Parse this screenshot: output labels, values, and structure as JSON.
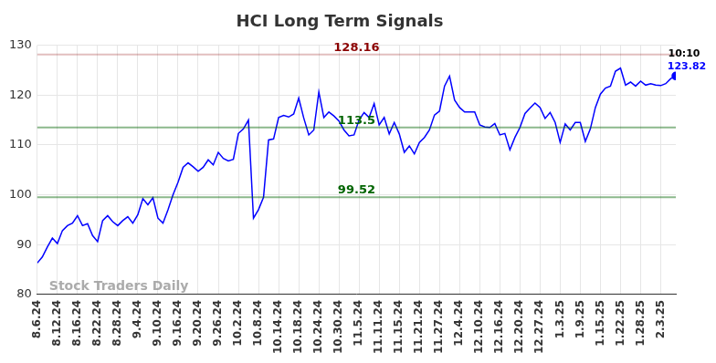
{
  "chart_data": {
    "type": "line",
    "title": "HCI Long Term Signals",
    "categories": [
      "8.6.24",
      null,
      null,
      null,
      "8.12.24",
      null,
      null,
      null,
      "8.16.24",
      null,
      null,
      null,
      "8.22.24",
      null,
      null,
      null,
      "8.28.24",
      null,
      null,
      null,
      "9.4.24",
      null,
      null,
      null,
      "9.10.24",
      null,
      null,
      null,
      "9.16.24",
      null,
      null,
      null,
      "9.20.24",
      null,
      null,
      null,
      "9.26.24",
      null,
      null,
      null,
      "10.2.24",
      null,
      null,
      null,
      "10.8.24",
      null,
      null,
      null,
      "10.14.24",
      null,
      null,
      null,
      "10.18.24",
      null,
      null,
      null,
      "10.24.24",
      null,
      null,
      null,
      "10.30.24",
      null,
      null,
      null,
      "11.5.24",
      null,
      null,
      null,
      "11.11.24",
      null,
      null,
      null,
      "11.15.24",
      null,
      null,
      null,
      "11.21.24",
      null,
      null,
      null,
      "11.27.24",
      null,
      null,
      null,
      "12.4.24",
      null,
      null,
      null,
      "12.10.24",
      null,
      null,
      null,
      "12.16.24",
      null,
      null,
      null,
      "12.20.24",
      null,
      null,
      null,
      "12.27.24",
      null,
      null,
      null,
      "1.3.25",
      null,
      null,
      null,
      "1.9.25",
      null,
      null,
      null,
      "1.15.25",
      null,
      null,
      null,
      "1.22.25",
      null,
      null,
      null,
      "1.28.25",
      null,
      null,
      null,
      "2.3.25",
      null,
      null,
      null
    ],
    "values": [
      86.3,
      87.5,
      89.5,
      91.3,
      90.2,
      92.8,
      93.8,
      94.3,
      95.8,
      93.8,
      94.2,
      91.8,
      90.6,
      94.8,
      95.8,
      94.6,
      93.8,
      94.8,
      95.6,
      94.3,
      96.0,
      99.2,
      98.0,
      99.4,
      95.3,
      94.3,
      97.0,
      100.0,
      102.5,
      105.5,
      106.4,
      105.6,
      104.7,
      105.5,
      107.0,
      106.0,
      108.5,
      107.3,
      106.8,
      107.1,
      112.3,
      113.2,
      115.0,
      95.3,
      97.0,
      99.5,
      111.0,
      111.2,
      115.5,
      115.9,
      115.6,
      116.2,
      119.4,
      115.4,
      112.0,
      113.0,
      120.6,
      115.5,
      116.6,
      115.8,
      114.8,
      113.0,
      111.8,
      112.0,
      115.0,
      116.5,
      115.5,
      118.3,
      114.0,
      115.5,
      112.2,
      114.5,
      112.2,
      108.5,
      109.8,
      108.2,
      110.5,
      111.5,
      113.0,
      116.0,
      116.8,
      121.8,
      123.8,
      119.0,
      117.5,
      116.6,
      116.6,
      116.6,
      114.0,
      113.6,
      113.5,
      114.3,
      112.0,
      112.3,
      109.0,
      111.5,
      113.5,
      116.3,
      117.4,
      118.4,
      117.5,
      115.3,
      116.5,
      114.5,
      110.5,
      114.2,
      113.0,
      114.5,
      114.5,
      110.7,
      113.2,
      117.5,
      120.2,
      121.4,
      121.8,
      124.8,
      125.4,
      122.0,
      122.6,
      121.8,
      122.8,
      122.0,
      122.3,
      122.0,
      121.9,
      122.3,
      123.3,
      123.82
    ],
    "color": "#0000ff",
    "ylim": [
      80,
      130
    ],
    "yticks": [
      80,
      90,
      100,
      110,
      120,
      130
    ],
    "grid": true,
    "reference_lines": [
      {
        "value": 128.16,
        "color": "#8b0000"
      },
      {
        "value": 113.5,
        "color": "#006400"
      },
      {
        "value": 99.52,
        "color": "#006400"
      }
    ],
    "annotation": "10:10",
    "watermark": "Stock Traders Daily"
  }
}
